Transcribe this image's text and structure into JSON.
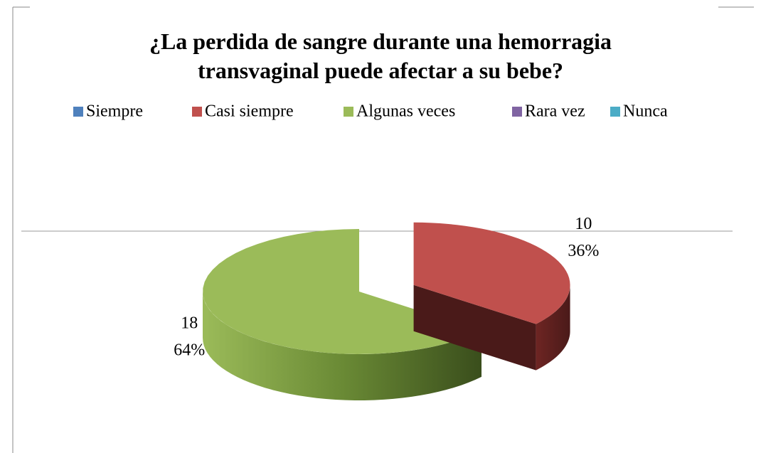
{
  "chart_data": {
    "type": "pie",
    "title": "¿La perdida de sangre durante una hemorragia transvaginal puede afectar a su  bebe?",
    "categories": [
      "Siempre",
      "Casi siempre",
      "Algunas veces",
      "Rara vez",
      "Nunca"
    ],
    "values": [
      0,
      10,
      18,
      0,
      0
    ],
    "percent_labels": [
      null,
      "36%",
      "64%",
      null,
      null
    ],
    "colors": [
      "#4f81bd",
      "#c0504d",
      "#9bbb59",
      "#8064a2",
      "#4bacc6"
    ],
    "legend": "top"
  }
}
